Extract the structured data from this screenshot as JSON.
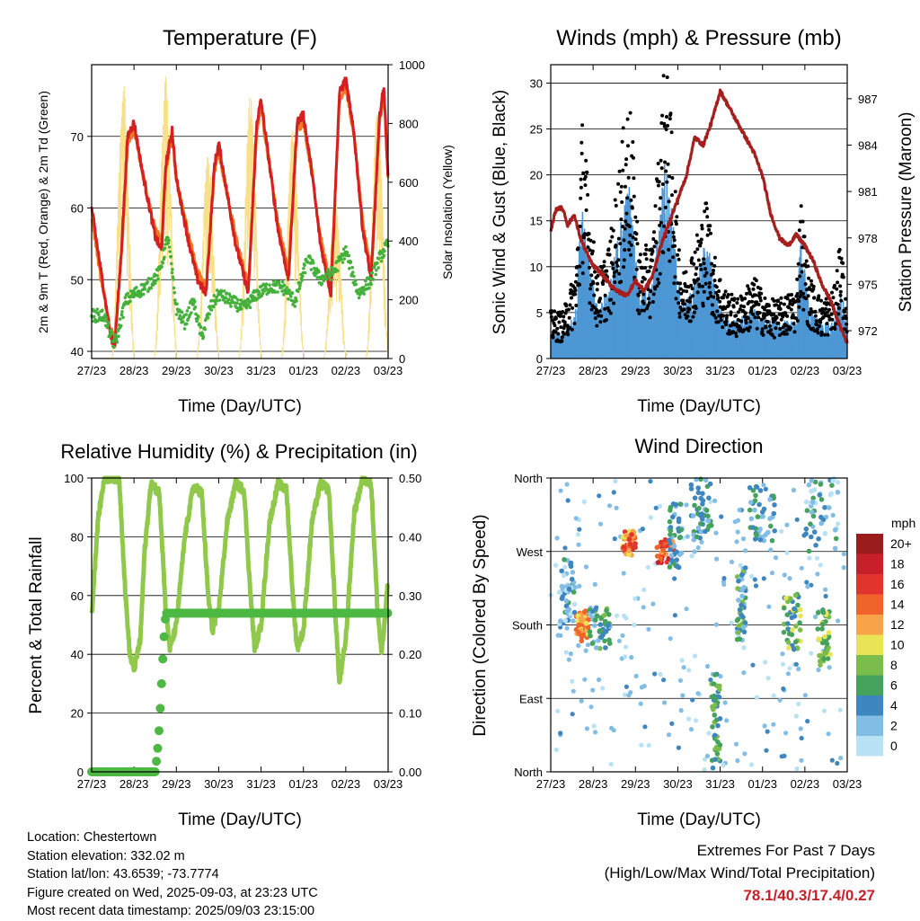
{
  "panels": {
    "temperature": {
      "title": "Temperature (F)",
      "ylabel_left": "2m & 9m T (Red, Orange) & 2m Td (Green)",
      "ylabel_right": "Solar Insolation (Yellow)",
      "xlabel": "Time (Day/UTC)"
    },
    "winds": {
      "title": "Winds (mph) & Pressure (mb)",
      "ylabel_left": "Sonic Wind & Gust (Blue, Black)",
      "ylabel_right": "Station Pressure (Maroon)",
      "xlabel": "Time (Day/UTC)"
    },
    "humidity": {
      "title": "Relative Humidity (%) & Precipitation (in)",
      "ylabel_left": "Percent & Total Rainfall",
      "xlabel": "Time (Day/UTC)"
    },
    "direction": {
      "title": "Wind Direction",
      "ylabel_left": "Direction (Colored By Speed)",
      "xlabel": "Time (Day/UTC)"
    }
  },
  "colorbar": {
    "unit": "mph",
    "labels": [
      "20+",
      "18",
      "16",
      "14",
      "12",
      "10",
      "8",
      "6",
      "4",
      "2",
      "0"
    ],
    "colors": [
      "#9b1c1c",
      "#c8202a",
      "#e0342c",
      "#f0642c",
      "#f7a34a",
      "#e9e356",
      "#7bbd4b",
      "#45a25d",
      "#3e86c0",
      "#82bde6",
      "#b8e1f4"
    ]
  },
  "info": {
    "location": "Location: Chestertown",
    "elevation": "Station elevation: 332.02 m",
    "latlon": "Station lat/lon: 43.6539; -73.7774",
    "created": "Figure created on Wed, 2025-09-03, at 23:23 UTC",
    "recent": "Most recent data timestamp: 2025/09/03 23:15:00"
  },
  "extremes": {
    "line1": "Extremes For Past 7 Days",
    "line2": "(High/Low/Max Wind/Total Precipitation)",
    "values": "78.1/40.3/17.4/0.27"
  },
  "chart_data": [
    {
      "type": "line",
      "title": "Temperature (F)",
      "xlabel": "Time (Day/UTC)",
      "x_ticks": [
        "27/23",
        "28/23",
        "29/23",
        "30/23",
        "31/23",
        "01/23",
        "02/23",
        "03/23"
      ],
      "xlim": [
        0,
        7
      ],
      "ylim": [
        39,
        80
      ],
      "y_ticks": [
        40,
        50,
        60,
        70
      ],
      "y2lim": [
        0,
        1000
      ],
      "y2_ticks": [
        0,
        200,
        400,
        600,
        800,
        1000
      ],
      "grid": true,
      "series": [
        {
          "name": "2m T",
          "color": "#d42020",
          "axis": "left",
          "x": [
            0,
            0.2,
            0.45,
            0.55,
            0.7,
            0.85,
            1.0,
            1.2,
            1.5,
            1.65,
            1.75,
            1.9,
            2.0,
            2.3,
            2.5,
            2.7,
            2.9,
            3.0,
            3.2,
            3.4,
            3.7,
            3.9,
            4.0,
            4.2,
            4.4,
            4.65,
            4.85,
            5.0,
            5.2,
            5.4,
            5.65,
            5.85,
            6.0,
            6.2,
            6.4,
            6.6,
            6.8,
            6.9,
            7.0
          ],
          "y": [
            60,
            52,
            42,
            41,
            54,
            70,
            72,
            65,
            56,
            54,
            66,
            71,
            64,
            55,
            50,
            48,
            66,
            69,
            62,
            55,
            48,
            72,
            75,
            66,
            57,
            50,
            72,
            73,
            65,
            55,
            48,
            76,
            78,
            70,
            57,
            50,
            73,
            77,
            64
          ]
        },
        {
          "name": "9m T",
          "color": "#f07820",
          "axis": "left",
          "x": [
            0,
            0.2,
            0.45,
            0.55,
            0.7,
            0.85,
            1.0,
            1.2,
            1.5,
            1.65,
            1.75,
            1.9,
            2.0,
            2.3,
            2.5,
            2.7,
            2.9,
            3.0,
            3.2,
            3.4,
            3.7,
            3.9,
            4.0,
            4.2,
            4.4,
            4.65,
            4.85,
            5.0,
            5.2,
            5.4,
            5.65,
            5.85,
            6.0,
            6.2,
            6.4,
            6.6,
            6.8,
            6.9,
            7.0
          ],
          "y": [
            59,
            51,
            43,
            42,
            53,
            69,
            71,
            65,
            57,
            55,
            65,
            70,
            64,
            56,
            51,
            49,
            65,
            68,
            62,
            56,
            49,
            71,
            74,
            66,
            58,
            51,
            71,
            72,
            65,
            56,
            49,
            75,
            77,
            70,
            58,
            51,
            72,
            76,
            64
          ]
        },
        {
          "name": "2m Td",
          "color": "#45b03c",
          "axis": "left",
          "x": [
            0,
            0.3,
            0.5,
            0.6,
            0.8,
            1.0,
            1.3,
            1.6,
            1.8,
            2.0,
            2.2,
            2.4,
            2.6,
            2.8,
            3.0,
            3.3,
            3.6,
            3.9,
            4.2,
            4.5,
            4.8,
            5.1,
            5.4,
            5.7,
            6.0,
            6.3,
            6.6,
            6.8,
            7.0
          ],
          "y": [
            45,
            45,
            41,
            42,
            47,
            48,
            49,
            51,
            56,
            46,
            44,
            47,
            42,
            46,
            48,
            47,
            46,
            48,
            49,
            49,
            47,
            53,
            50,
            51,
            54,
            48,
            50,
            53,
            55
          ]
        },
        {
          "name": "Solar Insolation",
          "color": "#f8e08a",
          "axis": "right",
          "type": "daily-peaks",
          "peak_x": [
            0.75,
            1.75,
            2.75,
            3.75,
            4.75,
            5.75,
            6.75
          ],
          "peak_y": [
            950,
            960,
            700,
            900,
            780,
            550,
            850
          ]
        }
      ]
    },
    {
      "type": "line",
      "title": "Winds (mph) & Pressure (mb)",
      "xlabel": "Time (Day/UTC)",
      "x_ticks": [
        "27/23",
        "28/23",
        "29/23",
        "30/23",
        "31/23",
        "01/23",
        "02/23",
        "03/23"
      ],
      "xlim": [
        0,
        7
      ],
      "ylim": [
        0,
        32
      ],
      "y_ticks": [
        0,
        5,
        10,
        15,
        20,
        25,
        30
      ],
      "y2lim": [
        970.2,
        989.2
      ],
      "y2_ticks": [
        972,
        975,
        978,
        981,
        984,
        987
      ],
      "grid": true,
      "series": [
        {
          "name": "Sonic Wind",
          "color": "#4e97d4",
          "axis": "left",
          "type": "area-band",
          "x": [
            0,
            0.3,
            0.6,
            0.75,
            0.9,
            1.1,
            1.4,
            1.7,
            1.85,
            2.1,
            2.4,
            2.7,
            2.85,
            3.1,
            3.4,
            3.7,
            3.85,
            4.1,
            4.4,
            4.8,
            5.1,
            5.4,
            5.8,
            5.9,
            6.1,
            6.4,
            6.7,
            6.85,
            7.0
          ],
          "y": [
            2,
            2,
            4,
            14,
            8,
            4,
            6,
            12,
            14,
            5,
            6,
            16,
            12,
            4,
            6,
            10,
            6,
            3,
            3,
            4,
            3,
            3,
            3,
            10,
            4,
            3,
            3,
            6,
            2
          ]
        },
        {
          "name": "Gust",
          "color": "#000000",
          "axis": "left",
          "type": "scatter",
          "x": [
            0,
            0.3,
            0.6,
            0.75,
            0.9,
            1.1,
            1.4,
            1.7,
            1.85,
            2.1,
            2.4,
            2.7,
            2.85,
            3.1,
            3.4,
            3.7,
            3.85,
            4.1,
            4.4,
            4.8,
            5.1,
            5.4,
            5.8,
            5.9,
            6.1,
            6.4,
            6.7,
            6.85,
            7.0
          ],
          "y": [
            4,
            4,
            8,
            21,
            14,
            7,
            10,
            19,
            23,
            9,
            10,
            26,
            20,
            7,
            10,
            14,
            9,
            6,
            5,
            7,
            5,
            5,
            6,
            14,
            7,
            5,
            6,
            11,
            3
          ]
        },
        {
          "name": "Station Pressure",
          "color": "#a51f1f",
          "axis": "right",
          "x": [
            0,
            0.1,
            0.2,
            0.3,
            0.4,
            0.55,
            0.7,
            0.85,
            1.0,
            1.2,
            1.4,
            1.6,
            1.8,
            2.0,
            2.2,
            2.4,
            2.6,
            2.8,
            3.0,
            3.2,
            3.4,
            3.6,
            3.8,
            4.0,
            4.2,
            4.4,
            4.6,
            4.8,
            5.0,
            5.2,
            5.4,
            5.6,
            5.8,
            6.0,
            6.2,
            6.4,
            6.6,
            6.8,
            7.0
          ],
          "y": [
            978.3,
            979.7,
            980,
            979.8,
            978.8,
            979.5,
            978,
            977,
            976.2,
            975.7,
            975,
            974.5,
            974.3,
            975.2,
            974.6,
            975.5,
            977.5,
            979,
            980.5,
            982,
            984.5,
            984,
            985.5,
            987.5,
            986.5,
            985.5,
            984.5,
            983.5,
            982,
            979.5,
            978,
            977.5,
            978.2,
            977.5,
            976.5,
            975,
            974,
            972.5,
            971.2
          ]
        }
      ]
    },
    {
      "type": "line",
      "title": "Relative Humidity (%) & Precipitation (in)",
      "xlabel": "Time (Day/UTC)",
      "x_ticks": [
        "27/23",
        "28/23",
        "29/23",
        "30/23",
        "31/23",
        "01/23",
        "02/23",
        "03/23"
      ],
      "xlim": [
        0,
        7
      ],
      "ylim": [
        0,
        100
      ],
      "y_ticks": [
        0,
        20,
        40,
        60,
        80,
        100
      ],
      "y2lim": [
        0,
        0.5
      ],
      "y2_ticks": [
        "0.00",
        "0.10",
        "0.20",
        "0.30",
        "0.40",
        "0.50"
      ],
      "grid": true,
      "series": [
        {
          "name": "Relative Humidity",
          "color": "#8fc84a",
          "axis": "left",
          "x": [
            0,
            0.15,
            0.3,
            0.45,
            0.65,
            0.8,
            0.9,
            1.0,
            1.15,
            1.25,
            1.4,
            1.6,
            1.75,
            1.85,
            2.0,
            2.2,
            2.4,
            2.6,
            2.75,
            2.85,
            3.0,
            3.2,
            3.4,
            3.6,
            3.75,
            3.85,
            4.0,
            4.2,
            4.4,
            4.6,
            4.75,
            4.85,
            5.0,
            5.2,
            5.4,
            5.6,
            5.75,
            5.85,
            6.0,
            6.2,
            6.4,
            6.6,
            6.75,
            6.85,
            7.0
          ],
          "y": [
            53,
            86,
            100,
            100,
            100,
            60,
            40,
            35,
            45,
            75,
            98,
            95,
            55,
            42,
            50,
            80,
            97,
            95,
            60,
            48,
            55,
            85,
            98,
            96,
            60,
            42,
            50,
            85,
            98,
            96,
            60,
            42,
            48,
            85,
            98,
            96,
            55,
            30,
            45,
            88,
            100,
            98,
            55,
            40,
            65
          ]
        },
        {
          "name": "Total Rainfall",
          "color": "#4db843",
          "axis": "right",
          "x": [
            0,
            1.5,
            1.55,
            1.6,
            1.65,
            1.7,
            1.75,
            1.8,
            2.0,
            7.0
          ],
          "y": [
            0,
            0,
            0.03,
            0.08,
            0.15,
            0.22,
            0.27,
            0.27,
            0.27,
            0.27
          ]
        }
      ]
    },
    {
      "type": "scatter",
      "title": "Wind Direction",
      "xlabel": "Time (Day/UTC)",
      "x_ticks": [
        "27/23",
        "28/23",
        "29/23",
        "30/23",
        "31/23",
        "01/23",
        "02/23",
        "03/23"
      ],
      "xlim": [
        0,
        7
      ],
      "ylim": [
        0,
        360
      ],
      "y_ticks": [
        "North",
        "East",
        "South",
        "West",
        "North"
      ],
      "grid": true,
      "color_by": "speed (mph)",
      "clusters": [
        {
          "x": [
            0.2,
            0.6
          ],
          "dir": [
            180,
            260
          ],
          "speed": 3
        },
        {
          "x": [
            0.6,
            0.9
          ],
          "dir": [
            160,
            200
          ],
          "speed": 13
        },
        {
          "x": [
            0.9,
            1.4
          ],
          "dir": [
            150,
            200
          ],
          "speed": 5
        },
        {
          "x": [
            1.7,
            2.0
          ],
          "dir": [
            265,
            295
          ],
          "speed": 13
        },
        {
          "x": [
            2.5,
            2.9
          ],
          "dir": [
            255,
            285
          ],
          "speed": 15
        },
        {
          "x": [
            2.8,
            3.1
          ],
          "dir": [
            250,
            330
          ],
          "speed": 4
        },
        {
          "x": [
            3.3,
            3.8
          ],
          "dir": [
            280,
            360
          ],
          "speed": 4
        },
        {
          "x": [
            3.8,
            4.0
          ],
          "dir": [
            0,
            120
          ],
          "speed": 6
        },
        {
          "x": [
            4.4,
            4.6
          ],
          "dir": [
            160,
            250
          ],
          "speed": 5
        },
        {
          "x": [
            4.7,
            5.3
          ],
          "dir": [
            280,
            350
          ],
          "speed": 4
        },
        {
          "x": [
            5.5,
            5.9
          ],
          "dir": [
            150,
            220
          ],
          "speed": 7
        },
        {
          "x": [
            6.3,
            6.6
          ],
          "dir": [
            130,
            200
          ],
          "speed": 8
        },
        {
          "x": [
            6.0,
            6.8
          ],
          "dir": [
            270,
            360
          ],
          "speed": 3
        }
      ]
    }
  ]
}
